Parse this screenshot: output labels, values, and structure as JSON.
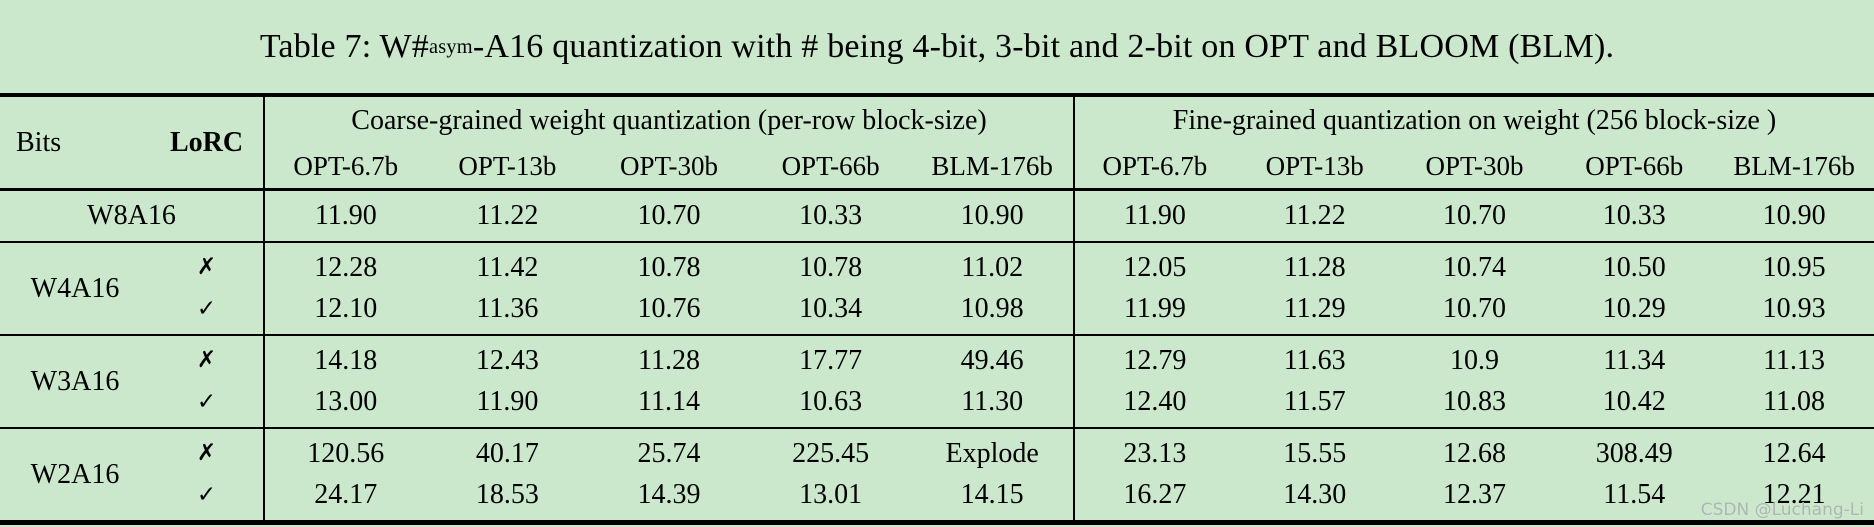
{
  "title": {
    "prefix": "Table 7: W#",
    "sup": "asym",
    "suffix": "-A16 quantization with # being 4-bit, 3-bit and 2-bit on OPT and BLOOM (BLM)."
  },
  "colors": {
    "background": "#cbe8cd",
    "text": "#000000",
    "watermark": "#aeb6b0"
  },
  "header": {
    "bits_label": "Bits",
    "lorc_label": "LoRC",
    "groups": [
      {
        "label": "Coarse-grained weight quantization (per-row block-size)",
        "models": [
          "OPT-6.7b",
          "OPT-13b",
          "OPT-30b",
          "OPT-66b",
          "BLM-176b"
        ]
      },
      {
        "label": "Fine-grained quantization on weight (256 block-size )",
        "models": [
          "OPT-6.7b",
          "OPT-13b",
          "OPT-30b",
          "OPT-66b",
          "BLM-176b"
        ]
      }
    ]
  },
  "marks": {
    "no": "✗",
    "yes": "✓"
  },
  "body": [
    {
      "bits": "W8A16",
      "coarse": [
        "11.90",
        "11.22",
        "10.70",
        "10.33",
        "10.90"
      ],
      "fine": [
        "11.90",
        "11.22",
        "10.70",
        "10.33",
        "10.90"
      ]
    },
    {
      "bits": "W4A16",
      "no": {
        "coarse": [
          "12.28",
          "11.42",
          "10.78",
          "10.78",
          "11.02"
        ],
        "fine": [
          "12.05",
          "11.28",
          "10.74",
          "10.50",
          "10.95"
        ]
      },
      "yes": {
        "coarse": [
          "12.10",
          "11.36",
          "10.76",
          "10.34",
          "10.98"
        ],
        "fine": [
          "11.99",
          "11.29",
          "10.70",
          "10.29",
          "10.93"
        ]
      }
    },
    {
      "bits": "W3A16",
      "no": {
        "coarse": [
          "14.18",
          "12.43",
          "11.28",
          "17.77",
          "49.46"
        ],
        "fine": [
          "12.79",
          "11.63",
          "10.9",
          "11.34",
          "11.13"
        ]
      },
      "yes": {
        "coarse": [
          "13.00",
          "11.90",
          "11.14",
          "10.63",
          "11.30"
        ],
        "fine": [
          "12.40",
          "11.57",
          "10.83",
          "10.42",
          "11.08"
        ]
      }
    },
    {
      "bits": "W2A16",
      "no": {
        "coarse": [
          "120.56",
          "40.17",
          "25.74",
          "225.45",
          "Explode"
        ],
        "fine": [
          "23.13",
          "15.55",
          "12.68",
          "308.49",
          "12.64"
        ]
      },
      "yes": {
        "coarse": [
          "24.17",
          "18.53",
          "14.39",
          "13.01",
          "14.15"
        ],
        "fine": [
          "16.27",
          "14.30",
          "12.37",
          "11.54",
          "12.21"
        ]
      }
    }
  ],
  "watermark": "CSDN @Luchang-Li"
}
